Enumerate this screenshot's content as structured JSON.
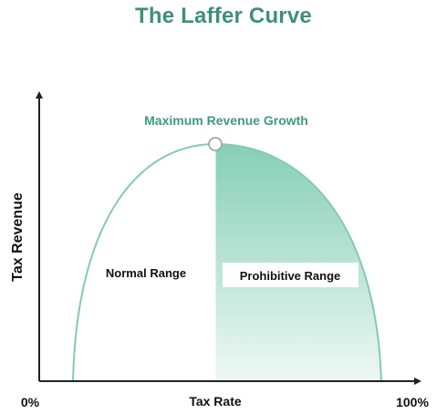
{
  "title": "The Laffer Curve",
  "peak_label": "Maximum Revenue Growth",
  "left_region_label": "Normal Range",
  "right_region_label": "Prohibitive Range",
  "y_axis_label": "Tax Revenue",
  "x_axis_label": "Tax Rate",
  "x_min_label": "0%",
  "x_max_label": "100%",
  "colors": {
    "title": "#3f8f7a",
    "accent": "#3f9a80",
    "curve": "#86c9b2",
    "fill_top": "#86cfb6",
    "fill_bottom": "#ecf7f3",
    "axis": "#222222"
  }
}
